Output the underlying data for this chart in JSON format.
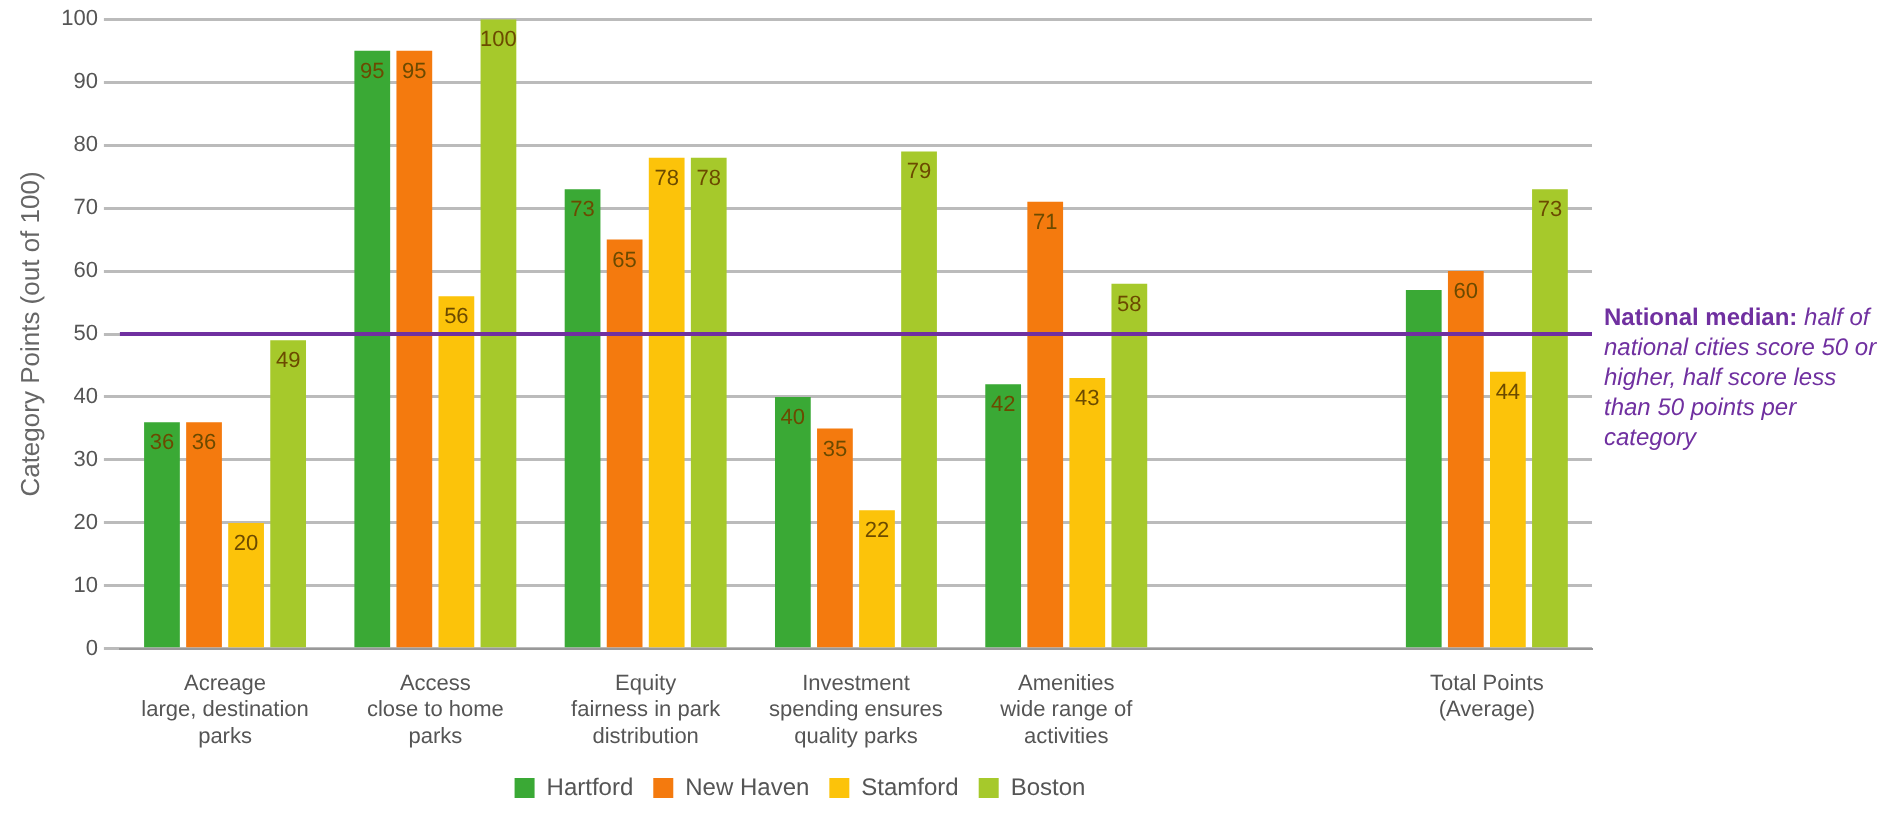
{
  "chart_data": {
    "type": "bar",
    "ylabel": "Category Points (out of 100)",
    "categories": [
      "Acreage\nlarge, destination\nparks",
      "Access\nclose to home\nparks",
      "Equity\nfairness in park\ndistribution",
      "Investment\nspending ensures\nquality parks",
      "Amenities\nwide range of\nactivities",
      null,
      "Total Points\n(Average)"
    ],
    "series": [
      {
        "name": "Hartford",
        "color": "#3aa935",
        "values": [
          36,
          95,
          73,
          40,
          42,
          null,
          57
        ],
        "value_labels": [
          "36",
          "95",
          "73",
          "40",
          "42",
          null,
          null
        ]
      },
      {
        "name": "New Haven",
        "color": "#f47a0e",
        "values": [
          36,
          95,
          65,
          35,
          71,
          null,
          60
        ],
        "value_labels": [
          "36",
          "95",
          "65",
          "35",
          "71",
          null,
          "60"
        ]
      },
      {
        "name": "Stamford",
        "color": "#fcc30a",
        "values": [
          20,
          56,
          78,
          22,
          43,
          null,
          44
        ],
        "value_labels": [
          "20",
          "56",
          "78",
          "22",
          "43",
          null,
          "44"
        ]
      },
      {
        "name": "Boston",
        "color": "#a6c92b",
        "values": [
          49,
          100,
          78,
          79,
          58,
          null,
          73
        ],
        "value_labels": [
          "49",
          "100",
          "78",
          "79",
          "58",
          null,
          "73"
        ]
      }
    ],
    "ylim": [
      0,
      100
    ],
    "yticks": [
      0,
      10,
      20,
      30,
      40,
      50,
      60,
      70,
      80,
      90,
      100
    ],
    "grid": "y",
    "legend": "bottom",
    "ref_lines": [
      {
        "axis": "y",
        "value": 50,
        "label": "National median: half of national cities score 50 or higher, half score less than 50 points per category",
        "color": "#7030a0"
      }
    ]
  }
}
